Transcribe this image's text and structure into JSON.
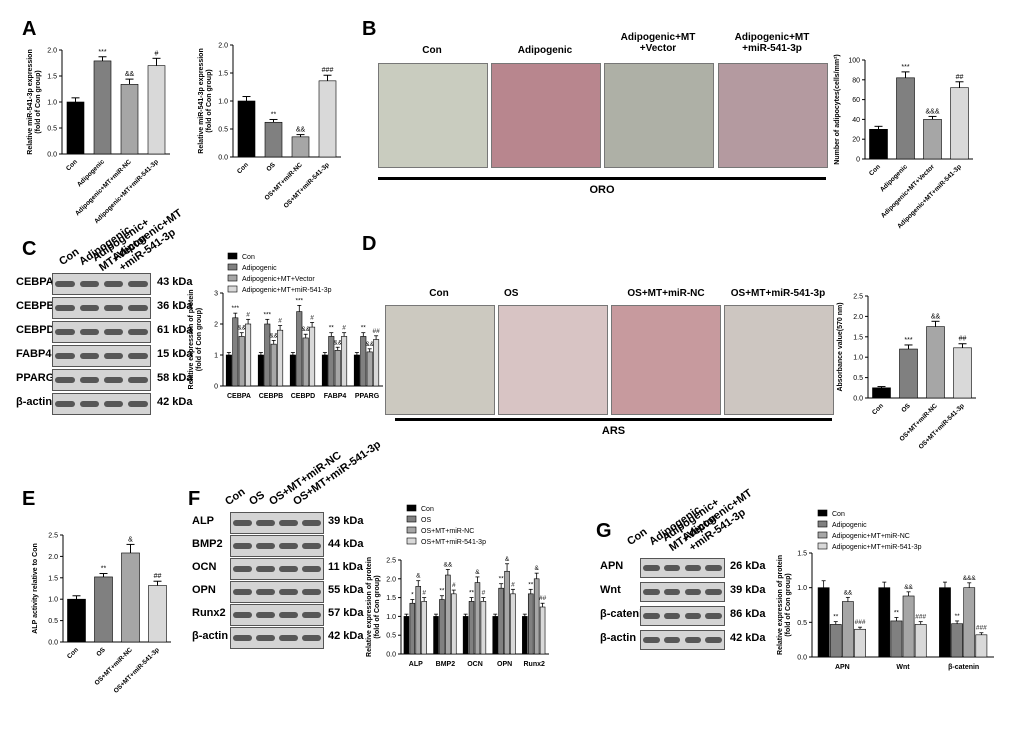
{
  "panels": {
    "A": {
      "label": "A"
    },
    "B": {
      "label": "B",
      "images": [
        "Con",
        "Adipogenic",
        "Adipogenic+MT\n+Vector",
        "Adipogenic+MT\n+miR-541-3p"
      ],
      "caption": "ORO"
    },
    "C": {
      "label": "C",
      "lanes": [
        "Con",
        "Adipogenic",
        "Adipogenic+\nMT+Vector",
        "Adipogenic+MT\n+miR-541-3p"
      ],
      "proteins": [
        "CEBPA",
        "CEBPB",
        "CEBPD",
        "FABP4",
        "PPARG",
        "β-actin"
      ],
      "kda": [
        "43 kDa",
        "36 kDa",
        "61 kDa",
        "15 kDa",
        "58 kDa",
        "42 kDa"
      ]
    },
    "D": {
      "label": "D",
      "images": [
        "Con",
        "OS",
        "OS+MT+miR-NC",
        "OS+MT+miR-541-3p"
      ],
      "caption": "ARS"
    },
    "E": {
      "label": "E"
    },
    "F": {
      "label": "F",
      "lanes": [
        "Con",
        "OS",
        "OS+MT+miR-NC",
        "OS+MT+miR-541-3p"
      ],
      "proteins": [
        "ALP",
        "BMP2",
        "OCN",
        "OPN",
        "Runx2",
        "β-actin"
      ],
      "kda": [
        "39 kDa",
        "44 kDa",
        "11 kDa",
        "55 kDa",
        "57 kDa",
        "42 kDa"
      ]
    },
    "G": {
      "label": "G",
      "lanes": [
        "Con",
        "Adipogenic",
        "Adipogenic+\nMT+Vector",
        "Adipogenic+MT\n+miR-541-3p"
      ],
      "proteins": [
        "APN",
        "Wnt",
        "β-catenin",
        "β-actin"
      ],
      "kda": [
        "26 kDa",
        "39 kDa",
        "86 kDa",
        "42 kDa"
      ]
    }
  },
  "colors": {
    "black": "#000000",
    "dark": "#808080",
    "mid": "#a6a6a6",
    "light": "#d9d9d9"
  },
  "chart_data": [
    {
      "id": "A1",
      "type": "bar",
      "categories": [
        "Con",
        "Adipogenic",
        "Adipogenic+MT+miR-NC",
        "Adipogenic+MT+miR-541-3p"
      ],
      "values": [
        1.0,
        1.79,
        1.34,
        1.7
      ],
      "errors": [
        0.08,
        0.08,
        0.1,
        0.14
      ],
      "annotations": [
        "",
        "***",
        "&&",
        "#"
      ],
      "ylabel": "Relative miR-541-3p expression\n(fold of Con group)",
      "ylim": [
        0,
        2.0
      ],
      "yticks": [
        0,
        0.5,
        1.0,
        1.5,
        2.0
      ]
    },
    {
      "id": "A2",
      "type": "bar",
      "categories": [
        "Con",
        "OS",
        "OS+MT+miR-NC",
        "OS+MT+miR-541-3p"
      ],
      "values": [
        1.0,
        0.62,
        0.36,
        1.36
      ],
      "errors": [
        0.08,
        0.05,
        0.04,
        0.1
      ],
      "annotations": [
        "",
        "**",
        "&&",
        "###"
      ],
      "ylabel": "Relative miR-541-3p expression\n(fold of Con group)",
      "ylim": [
        0,
        2.0
      ],
      "yticks": [
        0,
        0.5,
        1.0,
        1.5,
        2.0
      ]
    },
    {
      "id": "B",
      "type": "bar",
      "categories": [
        "Con",
        "Adipogenic",
        "Adipogenic+MT+Vector",
        "Adipogenic+MT+miR-541-3p"
      ],
      "values": [
        30,
        82,
        40,
        72
      ],
      "errors": [
        3,
        6,
        3,
        6
      ],
      "annotations": [
        "",
        "***",
        "&&&",
        "##"
      ],
      "ylabel": "Number of adipocytes(cells/mm²)",
      "ylim": [
        0,
        100
      ],
      "yticks": [
        0,
        20,
        40,
        60,
        80,
        100
      ]
    },
    {
      "id": "C",
      "type": "bar",
      "groups": [
        "CEBPA",
        "CEBPB",
        "CEBPD",
        "FABP4",
        "PPARG"
      ],
      "series": [
        {
          "name": "Con",
          "values": [
            1.0,
            1.0,
            1.0,
            1.0,
            1.0
          ],
          "errors": [
            0.08,
            0.08,
            0.08,
            0.08,
            0.08
          ]
        },
        {
          "name": "Adipogenic",
          "values": [
            2.2,
            2.0,
            2.4,
            1.6,
            1.6
          ],
          "errors": [
            0.15,
            0.15,
            0.2,
            0.12,
            0.12
          ]
        },
        {
          "name": "Adipogenic+MT+Vector",
          "values": [
            1.6,
            1.35,
            1.55,
            1.15,
            1.1
          ],
          "errors": [
            0.12,
            0.12,
            0.12,
            0.1,
            0.1
          ]
        },
        {
          "name": "Adipogenic+MT+miR-541-3p",
          "values": [
            2.0,
            1.8,
            1.9,
            1.6,
            1.5
          ],
          "errors": [
            0.15,
            0.15,
            0.15,
            0.12,
            0.12
          ]
        }
      ],
      "annotations": [
        [
          "***",
          "&&",
          "#"
        ],
        [
          "***",
          "&&",
          "#"
        ],
        [
          "***",
          "&&",
          "#"
        ],
        [
          "**",
          "&&",
          "#"
        ],
        [
          "**",
          "&&",
          "##"
        ]
      ],
      "ylabel": "Relative expression of protein\n(fold of Con group)",
      "ylim": [
        0,
        3
      ],
      "yticks": [
        0,
        1,
        2,
        3
      ]
    },
    {
      "id": "D",
      "type": "bar",
      "categories": [
        "Con",
        "OS",
        "OS+MT+miR-NC",
        "OS+MT+miR-541-3p"
      ],
      "values": [
        0.25,
        1.2,
        1.75,
        1.23
      ],
      "errors": [
        0.03,
        0.1,
        0.13,
        0.1
      ],
      "annotations": [
        "",
        "***",
        "&&",
        "##"
      ],
      "ylabel": "Absorbance value(570 nm)",
      "ylim": [
        0,
        2.5
      ],
      "yticks": [
        0,
        0.5,
        1.0,
        1.5,
        2.0,
        2.5
      ]
    },
    {
      "id": "E",
      "type": "bar",
      "categories": [
        "Con",
        "OS",
        "OS+MT+miR-NC",
        "OS+MT+miR-541-3p"
      ],
      "values": [
        1.0,
        1.52,
        2.08,
        1.32
      ],
      "errors": [
        0.08,
        0.08,
        0.2,
        0.1
      ],
      "annotations": [
        "",
        "**",
        "&",
        "##"
      ],
      "ylabel": "ALP activity relative to Con",
      "ylim": [
        0,
        2.5
      ],
      "yticks": [
        0,
        0.5,
        1.0,
        1.5,
        2.0,
        2.5
      ]
    },
    {
      "id": "F",
      "type": "bar",
      "groups": [
        "ALP",
        "BMP2",
        "OCN",
        "OPN",
        "Runx2"
      ],
      "series": [
        {
          "name": "Con",
          "values": [
            1.0,
            1.0,
            1.0,
            1.0,
            1.0
          ],
          "errors": [
            0.06,
            0.06,
            0.06,
            0.06,
            0.06
          ]
        },
        {
          "name": "OS",
          "values": [
            1.35,
            1.45,
            1.4,
            1.75,
            1.6
          ],
          "errors": [
            0.1,
            0.1,
            0.1,
            0.12,
            0.12
          ]
        },
        {
          "name": "OS+MT+miR-NC",
          "values": [
            1.8,
            2.1,
            1.9,
            2.2,
            2.0
          ],
          "errors": [
            0.15,
            0.15,
            0.15,
            0.2,
            0.15
          ]
        },
        {
          "name": "OS+MT+miR-541-3p",
          "values": [
            1.4,
            1.6,
            1.4,
            1.6,
            1.25
          ],
          "errors": [
            0.1,
            0.1,
            0.1,
            0.12,
            0.1
          ]
        }
      ],
      "annotations": [
        [
          "*",
          "&",
          "#"
        ],
        [
          "**",
          "&&",
          "#"
        ],
        [
          "**",
          "&",
          "#"
        ],
        [
          "**",
          "&",
          "#"
        ],
        [
          "**",
          "&",
          "##"
        ]
      ],
      "ylabel": "Relative expression of protein\n(fold of Con group)",
      "ylim": [
        0,
        2.5
      ],
      "yticks": [
        0,
        0.5,
        1.0,
        1.5,
        2.0,
        2.5
      ]
    },
    {
      "id": "G",
      "type": "bar",
      "groups": [
        "APN",
        "Wnt",
        "β-catenin"
      ],
      "series": [
        {
          "name": "Con",
          "values": [
            1.0,
            1.0,
            1.0
          ],
          "errors": [
            0.1,
            0.08,
            0.08
          ]
        },
        {
          "name": "Adipogenic",
          "values": [
            0.47,
            0.52,
            0.48
          ],
          "errors": [
            0.04,
            0.05,
            0.04
          ]
        },
        {
          "name": "Adipogenic+MT+miR-NC",
          "values": [
            0.8,
            0.88,
            1.0
          ],
          "errors": [
            0.06,
            0.06,
            0.07
          ]
        },
        {
          "name": "Adipogenic+MT+miR-541-3p",
          "values": [
            0.4,
            0.47,
            0.32
          ],
          "errors": [
            0.03,
            0.04,
            0.03
          ]
        }
      ],
      "annotations": [
        [
          "**",
          "&&",
          "###"
        ],
        [
          "**",
          "&&",
          "###"
        ],
        [
          "**",
          "&&&",
          "###"
        ]
      ],
      "ylabel": "Relative expression of protein\n(fold of Con group)",
      "ylim": [
        0,
        1.5
      ],
      "yticks": [
        0.0,
        0.5,
        1.0,
        1.5
      ]
    }
  ]
}
